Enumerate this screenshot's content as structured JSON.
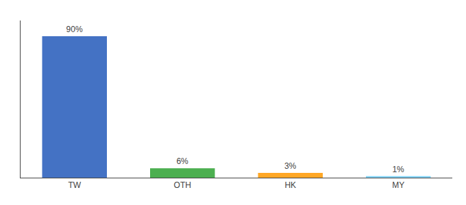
{
  "chart_data": {
    "type": "bar",
    "categories": [
      "TW",
      "OTH",
      "HK",
      "MY"
    ],
    "values": [
      90,
      6,
      3,
      1
    ],
    "value_labels": [
      "90%",
      "6%",
      "3%",
      "1%"
    ],
    "colors": [
      "#4472C4",
      "#4CAF50",
      "#FFA726",
      "#81D4FA"
    ],
    "ylim": [
      0,
      100
    ],
    "grid": false,
    "tick_labels": "x"
  }
}
